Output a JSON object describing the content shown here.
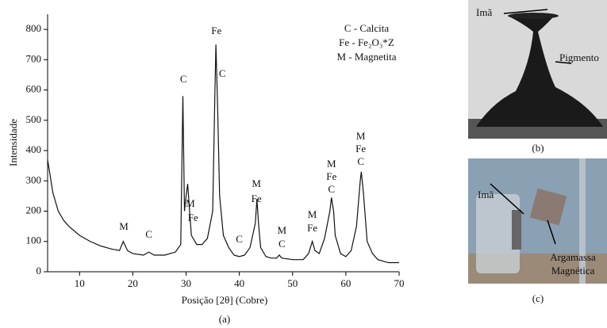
{
  "chart_data": {
    "type": "line",
    "y_label": "Intensidade",
    "x_label": "Posição [2θ] (Cobre)",
    "caption": "(a)",
    "legend_lines": [
      "C - Calcita",
      "Fe - Fe₂O₃*Z",
      "M - Magnetita"
    ],
    "xlim": [
      4,
      70
    ],
    "xticks": [
      10,
      20,
      30,
      40,
      50,
      60,
      70
    ],
    "ylim": [
      0,
      850
    ],
    "yticks": [
      0,
      100,
      200,
      300,
      400,
      500,
      600,
      700,
      800
    ],
    "x": [
      4,
      5,
      6,
      7,
      8,
      10,
      12,
      14,
      16,
      17.5,
      18.2,
      19,
      20,
      22,
      23,
      24,
      26,
      28,
      29,
      29.4,
      29.7,
      30,
      30.3,
      30.7,
      31,
      32,
      33,
      34,
      35,
      35.4,
      35.6,
      35.9,
      36.3,
      37,
      38,
      39,
      40,
      41,
      42,
      43,
      43.3,
      43.6,
      44,
      45,
      46,
      47,
      47.5,
      48,
      50,
      52,
      53,
      53.7,
      54.2,
      55,
      56,
      57,
      57.3,
      57.7,
      58,
      59,
      60,
      61,
      62,
      62.7,
      62.9,
      63.3,
      64,
      65,
      66,
      68,
      70
    ],
    "series": [
      {
        "name": "Intensidade",
        "color": "#111111",
        "values": [
          370,
          260,
          200,
          170,
          150,
          120,
          100,
          85,
          75,
          70,
          100,
          70,
          60,
          55,
          65,
          55,
          55,
          65,
          90,
          580,
          200,
          250,
          290,
          190,
          120,
          90,
          90,
          110,
          200,
          580,
          750,
          560,
          250,
          120,
          80,
          55,
          50,
          55,
          80,
          160,
          240,
          160,
          80,
          50,
          45,
          45,
          55,
          45,
          40,
          40,
          60,
          100,
          70,
          60,
          110,
          200,
          245,
          200,
          120,
          60,
          50,
          70,
          150,
          300,
          330,
          260,
          100,
          60,
          40,
          30,
          30
        ]
      }
    ],
    "annotations": [
      {
        "text": "M",
        "x": 18.3,
        "y": 146
      },
      {
        "text": "C",
        "x": 23,
        "y": 120
      },
      {
        "text": "C",
        "x": 29.5,
        "y": 633
      },
      {
        "text": "Fe",
        "x": 35.7,
        "y": 792
      },
      {
        "text": "C",
        "x": 36.8,
        "y": 651
      },
      {
        "text": "M",
        "x": 30.8,
        "y": 222
      },
      {
        "text": "Fe",
        "x": 31.3,
        "y": 175
      },
      {
        "text": "C",
        "x": 40,
        "y": 105
      },
      {
        "text": "M",
        "x": 43.2,
        "y": 288
      },
      {
        "text": "Fe",
        "x": 43.2,
        "y": 238
      },
      {
        "text": "M",
        "x": 48,
        "y": 133
      },
      {
        "text": "C",
        "x": 48,
        "y": 89
      },
      {
        "text": "M",
        "x": 53.7,
        "y": 186
      },
      {
        "text": "Fe",
        "x": 53.7,
        "y": 141
      },
      {
        "text": "M",
        "x": 57.3,
        "y": 353
      },
      {
        "text": "Fe",
        "x": 57.3,
        "y": 311
      },
      {
        "text": "C",
        "x": 57.3,
        "y": 269
      },
      {
        "text": "M",
        "x": 62.8,
        "y": 444
      },
      {
        "text": "Fe",
        "x": 62.8,
        "y": 403
      },
      {
        "text": "C",
        "x": 62.8,
        "y": 361
      }
    ]
  },
  "photos": [
    {
      "caption": "(b)",
      "labels": [
        "Imã",
        "Pigmento"
      ]
    },
    {
      "caption": "(c)",
      "labels": [
        "Imã",
        "Argamassa",
        "Magnética"
      ]
    }
  ]
}
